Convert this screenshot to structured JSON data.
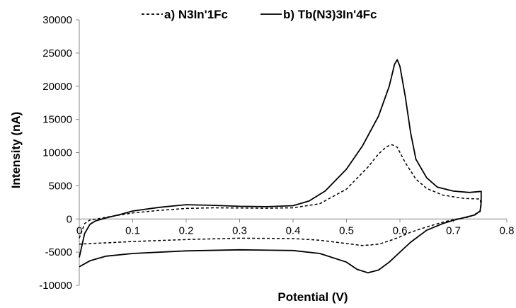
{
  "chart_data": {
    "type": "line",
    "xlabel": "Potential (V)",
    "ylabel": "Intensity (nA)",
    "xlim": [
      0,
      0.8
    ],
    "ylim": [
      -10000,
      30000
    ],
    "x_ticks": [
      "0",
      "0.1",
      "0.2",
      "0.3",
      "0.4",
      "0.5",
      "0.6",
      "0.7",
      "0.8"
    ],
    "y_ticks": [
      "-10000",
      "-5000",
      "0",
      "5000",
      "10000",
      "15000",
      "20000",
      "25000",
      "30000"
    ],
    "grid": false,
    "legend_position": "top",
    "series": [
      {
        "name": "a) N3In'1Fc",
        "style": "dashed",
        "color": "#000000",
        "points": [
          [
            0.0,
            -2900
          ],
          [
            0.01,
            -700
          ],
          [
            0.02,
            -150
          ],
          [
            0.04,
            100
          ],
          [
            0.06,
            400
          ],
          [
            0.08,
            650
          ],
          [
            0.1,
            900
          ],
          [
            0.15,
            1300
          ],
          [
            0.2,
            1580
          ],
          [
            0.25,
            1680
          ],
          [
            0.3,
            1650
          ],
          [
            0.35,
            1620
          ],
          [
            0.4,
            1680
          ],
          [
            0.45,
            2300
          ],
          [
            0.5,
            4500
          ],
          [
            0.54,
            7800
          ],
          [
            0.56,
            9800
          ],
          [
            0.575,
            10900
          ],
          [
            0.585,
            11200
          ],
          [
            0.595,
            10800
          ],
          [
            0.61,
            8500
          ],
          [
            0.63,
            6000
          ],
          [
            0.65,
            4600
          ],
          [
            0.68,
            3600
          ],
          [
            0.72,
            3100
          ],
          [
            0.75,
            3000
          ],
          [
            0.752,
            2100
          ],
          [
            0.75,
            1100
          ],
          [
            0.73,
            300
          ],
          [
            0.7,
            -100
          ],
          [
            0.68,
            -500
          ],
          [
            0.65,
            -1200
          ],
          [
            0.62,
            -2000
          ],
          [
            0.6,
            -2700
          ],
          [
            0.58,
            -3300
          ],
          [
            0.56,
            -3800
          ],
          [
            0.53,
            -4000
          ],
          [
            0.5,
            -3700
          ],
          [
            0.45,
            -3200
          ],
          [
            0.4,
            -2950
          ],
          [
            0.3,
            -2900
          ],
          [
            0.2,
            -3100
          ],
          [
            0.1,
            -3400
          ],
          [
            0.05,
            -3600
          ],
          [
            0.02,
            -3700
          ],
          [
            0.0,
            -3800
          ]
        ]
      },
      {
        "name": "b) Tb(N3)3In'4Fc",
        "style": "solid",
        "color": "#000000",
        "points": [
          [
            0.0,
            -5800
          ],
          [
            0.01,
            -2200
          ],
          [
            0.02,
            -800
          ],
          [
            0.03,
            -300
          ],
          [
            0.05,
            150
          ],
          [
            0.08,
            750
          ],
          [
            0.1,
            1200
          ],
          [
            0.15,
            1750
          ],
          [
            0.2,
            2150
          ],
          [
            0.25,
            2050
          ],
          [
            0.3,
            1900
          ],
          [
            0.35,
            1850
          ],
          [
            0.4,
            2000
          ],
          [
            0.43,
            2700
          ],
          [
            0.46,
            4200
          ],
          [
            0.5,
            7500
          ],
          [
            0.53,
            11000
          ],
          [
            0.56,
            15500
          ],
          [
            0.58,
            20000
          ],
          [
            0.59,
            23300
          ],
          [
            0.595,
            24000
          ],
          [
            0.6,
            23000
          ],
          [
            0.61,
            18500
          ],
          [
            0.62,
            13000
          ],
          [
            0.63,
            9000
          ],
          [
            0.65,
            6200
          ],
          [
            0.67,
            4800
          ],
          [
            0.7,
            4200
          ],
          [
            0.73,
            4000
          ],
          [
            0.752,
            4150
          ],
          [
            0.752,
            2500
          ],
          [
            0.75,
            1200
          ],
          [
            0.74,
            600
          ],
          [
            0.72,
            200
          ],
          [
            0.7,
            -200
          ],
          [
            0.68,
            -700
          ],
          [
            0.65,
            -1700
          ],
          [
            0.62,
            -3500
          ],
          [
            0.6,
            -5000
          ],
          [
            0.58,
            -6500
          ],
          [
            0.56,
            -7700
          ],
          [
            0.54,
            -8100
          ],
          [
            0.52,
            -7600
          ],
          [
            0.5,
            -6500
          ],
          [
            0.45,
            -5200
          ],
          [
            0.4,
            -4750
          ],
          [
            0.3,
            -4650
          ],
          [
            0.2,
            -4800
          ],
          [
            0.1,
            -5200
          ],
          [
            0.05,
            -5600
          ],
          [
            0.02,
            -6300
          ],
          [
            0.0,
            -7200
          ]
        ]
      }
    ]
  }
}
